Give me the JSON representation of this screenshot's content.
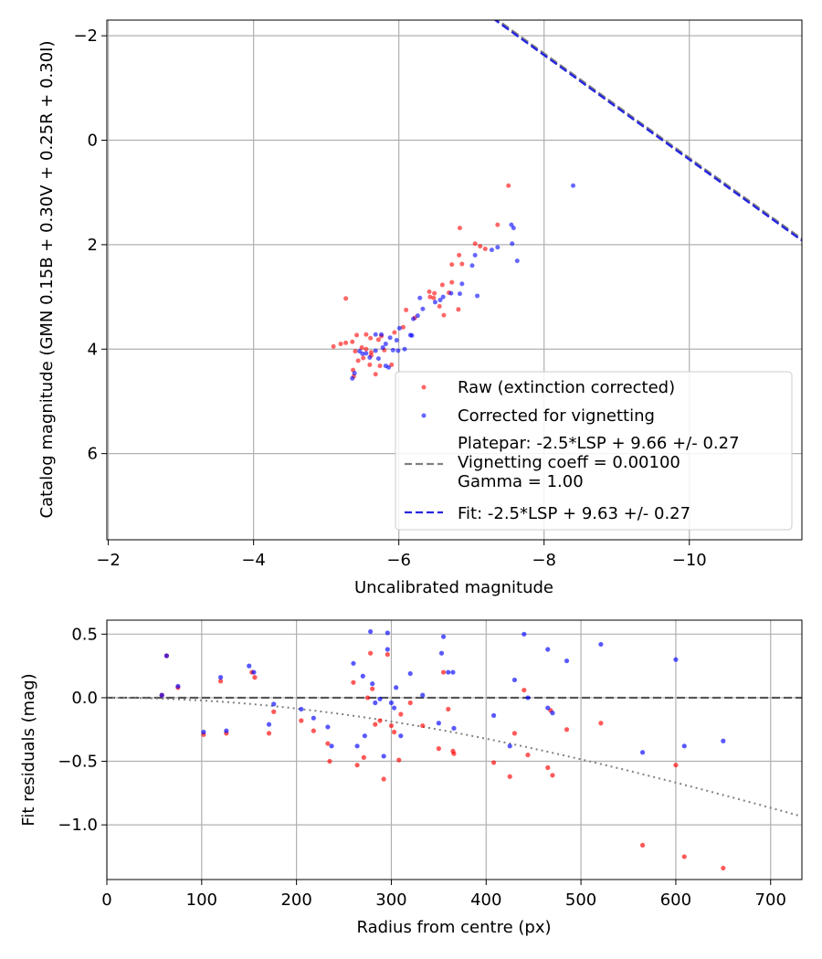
{
  "chart_data": [
    {
      "type": "scatter",
      "xlabel": "Uncalibrated magnitude",
      "ylabel": "Catalog magnitude (GMN 0.15B + 0.30V + 0.25R + 0.30I)",
      "xlim": [
        -1.98,
        -11.55
      ],
      "ylim": [
        7.65,
        -2.3
      ],
      "x_ticks": [
        -2,
        -4,
        -6,
        -8,
        -10
      ],
      "x_tick_labels": [
        "−2",
        "−4",
        "−6",
        "−8",
        "−10"
      ],
      "y_ticks": [
        -2,
        0,
        2,
        4,
        6
      ],
      "y_tick_labels": [
        "−2",
        "0",
        "2",
        "4",
        "6"
      ],
      "grid": true,
      "legend_position": "bottom-right",
      "legend": [
        {
          "label": "Raw (extinction corrected)",
          "kind": "marker",
          "color": "#ff0000"
        },
        {
          "label": "Corrected for vignetting",
          "kind": "marker",
          "color": "#0000ff"
        },
        {
          "label": "Platepar: -2.5*LSP + 9.66 +/- 0.27\nVignetting coeff = 0.00100\nGamma = 1.00",
          "kind": "dashed-line",
          "color": "#808080"
        },
        {
          "label": "Fit: -2.5*LSP + 9.63 +/- 0.27",
          "kind": "dashed-line",
          "color": "#2525e0"
        }
      ],
      "lines": [
        {
          "name": "Platepar",
          "slope": -1,
          "intercept": -9.66,
          "style": "dashed",
          "color": "#808080"
        },
        {
          "name": "Fit",
          "slope": -1,
          "intercept": -9.63,
          "style": "dashed",
          "color": "#2525e0"
        }
      ],
      "series": [
        {
          "name": "Raw (extinction corrected)",
          "color": "#ff0000",
          "points": [
            [
              -7.51,
              0.87
            ],
            [
              -7.36,
              1.62
            ],
            [
              -6.84,
              1.68
            ],
            [
              -7.05,
              1.98
            ],
            [
              -7.12,
              2.03
            ],
            [
              -7.19,
              2.08
            ],
            [
              -6.83,
              2.2
            ],
            [
              -6.73,
              2.38
            ],
            [
              -6.87,
              2.37
            ],
            [
              -6.6,
              2.77
            ],
            [
              -6.73,
              2.72
            ],
            [
              -6.49,
              2.93
            ],
            [
              -6.42,
              2.9
            ],
            [
              -6.43,
              3.0
            ],
            [
              -6.48,
              3.02
            ],
            [
              -6.56,
              3.18
            ],
            [
              -6.69,
              2.92
            ],
            [
              -6.82,
              3.24
            ],
            [
              -6.62,
              3.35
            ],
            [
              -6.1,
              3.25
            ],
            [
              -6.22,
              3.4
            ],
            [
              -6.06,
              3.58
            ],
            [
              -5.94,
              3.68
            ],
            [
              -5.76,
              3.75
            ],
            [
              -5.55,
              3.72
            ],
            [
              -5.42,
              3.73
            ],
            [
              -5.61,
              3.79
            ],
            [
              -5.72,
              3.82
            ],
            [
              -5.36,
              3.86
            ],
            [
              -5.2,
              3.9
            ],
            [
              -5.27,
              3.88
            ],
            [
              -5.1,
              3.95
            ],
            [
              -5.49,
              3.97
            ],
            [
              -5.55,
              4.0
            ],
            [
              -5.4,
              4.04
            ],
            [
              -5.62,
              4.06
            ],
            [
              -5.8,
              4.02
            ],
            [
              -5.51,
              4.17
            ],
            [
              -5.62,
              4.12
            ],
            [
              -5.44,
              4.22
            ],
            [
              -5.6,
              4.3
            ],
            [
              -5.74,
              4.32
            ],
            [
              -5.37,
              4.4
            ],
            [
              -5.38,
              4.52
            ],
            [
              -5.27,
              3.03
            ],
            [
              -5.68,
              4.48
            ],
            [
              -5.9,
              4.3
            ]
          ]
        },
        {
          "name": "Corrected for vignetting",
          "color": "#0000ff",
          "points": [
            [
              -8.4,
              0.87
            ],
            [
              -7.55,
              1.62
            ],
            [
              -7.58,
              1.68
            ],
            [
              -7.36,
              2.05
            ],
            [
              -7.28,
              2.1
            ],
            [
              -7.56,
              1.98
            ],
            [
              -7.05,
              2.2
            ],
            [
              -7.63,
              2.31
            ],
            [
              -7.01,
              2.4
            ],
            [
              -6.87,
              2.75
            ],
            [
              -7.08,
              2.98
            ],
            [
              -6.72,
              2.93
            ],
            [
              -6.84,
              2.94
            ],
            [
              -6.61,
              3.0
            ],
            [
              -6.57,
              3.06
            ],
            [
              -6.5,
              3.1
            ],
            [
              -6.29,
              3.02
            ],
            [
              -6.33,
              3.23
            ],
            [
              -6.26,
              3.36
            ],
            [
              -6.2,
              3.42
            ],
            [
              -6.01,
              3.6
            ],
            [
              -6.18,
              3.74
            ],
            [
              -6.16,
              3.73
            ],
            [
              -5.97,
              3.83
            ],
            [
              -5.88,
              3.78
            ],
            [
              -5.68,
              3.72
            ],
            [
              -5.76,
              3.72
            ],
            [
              -5.82,
              3.9
            ],
            [
              -5.78,
              3.97
            ],
            [
              -5.92,
              4.02
            ],
            [
              -6.08,
              4.0
            ],
            [
              -5.99,
              4.03
            ],
            [
              -5.68,
              4.03
            ],
            [
              -5.55,
              4.08
            ],
            [
              -5.46,
              4.04
            ],
            [
              -5.6,
              4.16
            ],
            [
              -5.72,
              4.18
            ],
            [
              -5.82,
              4.32
            ],
            [
              -5.86,
              4.35
            ],
            [
              -5.39,
              4.46
            ],
            [
              -5.36,
              4.56
            ],
            [
              -5.5,
              4.09
            ]
          ]
        }
      ]
    },
    {
      "type": "scatter",
      "xlabel": "Radius from centre (px)",
      "ylabel": "Fit residuals (mag)",
      "xlim": [
        0,
        733
      ],
      "ylim": [
        -1.43,
        0.61
      ],
      "x_ticks": [
        0,
        100,
        200,
        300,
        400,
        500,
        600,
        700
      ],
      "x_tick_labels": [
        "0",
        "100",
        "200",
        "300",
        "400",
        "500",
        "600",
        "700"
      ],
      "y_ticks": [
        0.5,
        0.0,
        -0.5,
        -1.0
      ],
      "y_tick_labels": [
        "0.5",
        "0.0",
        "−0.5",
        "−1.0"
      ],
      "grid": true,
      "lines": [
        {
          "name": "zero",
          "style": "dashed",
          "color": "#555555",
          "y": 0.0
        },
        {
          "name": "vignetting curve",
          "style": "dotted",
          "color": "#808080",
          "coeff": 0.001
        }
      ],
      "series": [
        {
          "name": "Raw (extinction corrected)",
          "color": "#ff0000",
          "points": [
            [
              58,
              0.02
            ],
            [
              63,
              0.33
            ],
            [
              75,
              0.08
            ],
            [
              102,
              -0.29
            ],
            [
              120,
              0.13
            ],
            [
              126,
              -0.28
            ],
            [
              153,
              0.2
            ],
            [
              156,
              0.16
            ],
            [
              171,
              -0.28
            ],
            [
              176,
              -0.11
            ],
            [
              205,
              -0.18
            ],
            [
              218,
              -0.26
            ],
            [
              233,
              -0.36
            ],
            [
              235,
              -0.5
            ],
            [
              260,
              0.12
            ],
            [
              264,
              -0.53
            ],
            [
              271,
              -0.47
            ],
            [
              275,
              0.0
            ],
            [
              278,
              0.35
            ],
            [
              280,
              0.07
            ],
            [
              283,
              -0.21
            ],
            [
              288,
              -0.18
            ],
            [
              292,
              -0.64
            ],
            [
              296,
              0.34
            ],
            [
              300,
              -0.22
            ],
            [
              303,
              -0.27
            ],
            [
              308,
              -0.49
            ],
            [
              310,
              -0.13
            ],
            [
              320,
              -0.04
            ],
            [
              333,
              -0.22
            ],
            [
              350,
              -0.4
            ],
            [
              355,
              0.2
            ],
            [
              360,
              -0.09
            ],
            [
              365,
              -0.42
            ],
            [
              366,
              -0.44
            ],
            [
              408,
              -0.51
            ],
            [
              425,
              -0.62
            ],
            [
              430,
              -0.28
            ],
            [
              440,
              0.06
            ],
            [
              444,
              -0.45
            ],
            [
              465,
              -0.55
            ],
            [
              468,
              -0.1
            ],
            [
              470,
              -0.61
            ],
            [
              485,
              -0.25
            ],
            [
              521,
              -0.2
            ],
            [
              565,
              -1.16
            ],
            [
              600,
              -0.53
            ],
            [
              609,
              -1.25
            ],
            [
              650,
              -1.34
            ]
          ]
        },
        {
          "name": "Corrected for vignetting",
          "color": "#0000ff",
          "points": [
            [
              58,
              0.02
            ],
            [
              63,
              0.33
            ],
            [
              75,
              0.09
            ],
            [
              102,
              -0.27
            ],
            [
              120,
              0.16
            ],
            [
              126,
              -0.26
            ],
            [
              150,
              0.25
            ],
            [
              155,
              0.2
            ],
            [
              171,
              -0.21
            ],
            [
              176,
              -0.05
            ],
            [
              205,
              -0.09
            ],
            [
              218,
              -0.16
            ],
            [
              233,
              -0.23
            ],
            [
              237,
              -0.38
            ],
            [
              260,
              0.27
            ],
            [
              264,
              -0.38
            ],
            [
              270,
              0.17
            ],
            [
              272,
              -0.3
            ],
            [
              278,
              0.52
            ],
            [
              280,
              0.11
            ],
            [
              283,
              -0.04
            ],
            [
              288,
              -0.01
            ],
            [
              292,
              -0.46
            ],
            [
              296,
              0.51
            ],
            [
              296,
              0.38
            ],
            [
              300,
              -0.04
            ],
            [
              303,
              -0.08
            ],
            [
              305,
              0.08
            ],
            [
              310,
              -0.3
            ],
            [
              320,
              0.19
            ],
            [
              333,
              0.02
            ],
            [
              350,
              -0.2
            ],
            [
              353,
              0.35
            ],
            [
              355,
              0.48
            ],
            [
              360,
              0.2
            ],
            [
              365,
              0.2
            ],
            [
              366,
              -0.24
            ],
            [
              408,
              -0.14
            ],
            [
              425,
              -0.38
            ],
            [
              430,
              0.14
            ],
            [
              440,
              0.5
            ],
            [
              444,
              0.0
            ],
            [
              465,
              -0.08
            ],
            [
              465,
              0.38
            ],
            [
              470,
              -0.12
            ],
            [
              485,
              0.29
            ],
            [
              521,
              0.42
            ],
            [
              565,
              -0.43
            ],
            [
              600,
              0.3
            ],
            [
              609,
              -0.38
            ],
            [
              650,
              -0.34
            ]
          ]
        }
      ]
    }
  ]
}
